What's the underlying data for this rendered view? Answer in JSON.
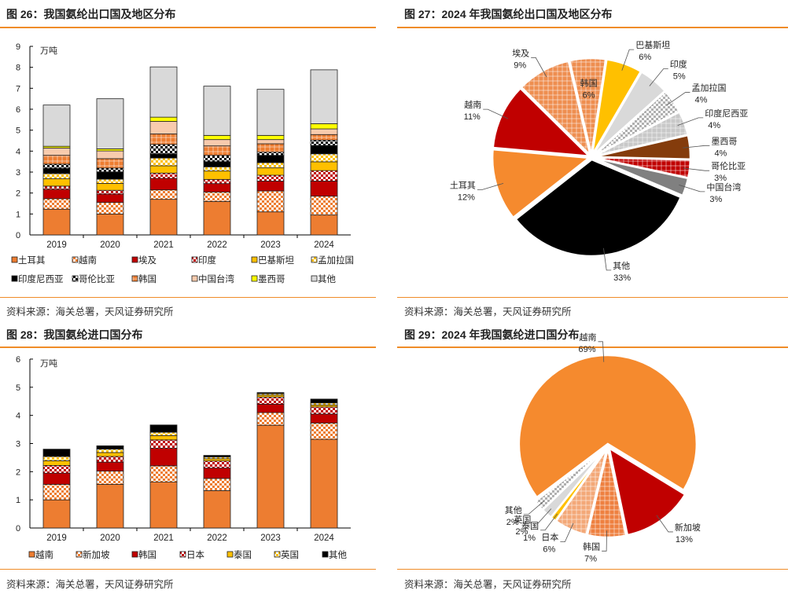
{
  "panels": {
    "p26": {
      "title": "图 26：我国氨纶出口国及地区分布",
      "source": "资料来源：海关总署，天风证券研究所"
    },
    "p27": {
      "title": "图 27：2024 年我国氨纶出口国及地区分布",
      "source": "资料来源：海关总署，天风证券研究所"
    },
    "p28": {
      "title": "图 28：我国氨纶进口国分布",
      "source": "资料来源：海关总署，天风证券研究所"
    },
    "p29": {
      "title": "图 29：2024 年我国氨纶进口国分布",
      "source": "资料来源：海关总署，天风证券研究所"
    }
  },
  "chart_data": [
    {
      "id": "c26",
      "type": "bar",
      "stacked": true,
      "title": "我国氨纶出口国及地区分布",
      "ylabel": "万吨",
      "ylim": [
        0,
        9
      ],
      "yticks": [
        0,
        1,
        2,
        3,
        4,
        5,
        6,
        7,
        8,
        9
      ],
      "categories": [
        "2019",
        "2020",
        "2021",
        "2022",
        "2023",
        "2024"
      ],
      "legend_position": "bottom",
      "series": [
        {
          "name": "土耳其",
          "fill": "#ED7D31",
          "pattern": "solid",
          "values": [
            1.23,
            1.0,
            1.7,
            1.6,
            1.1,
            0.95
          ]
        },
        {
          "name": "越南",
          "fill": "#ED7D31",
          "pattern": "checker",
          "values": [
            0.5,
            0.55,
            0.45,
            0.45,
            1.0,
            0.9
          ]
        },
        {
          "name": "埃及",
          "fill": "#C00000",
          "pattern": "solid",
          "values": [
            0.45,
            0.4,
            0.55,
            0.4,
            0.47,
            0.72
          ]
        },
        {
          "name": "印度",
          "fill": "#C00000",
          "pattern": "checker",
          "values": [
            0.15,
            0.18,
            0.25,
            0.2,
            0.28,
            0.5
          ]
        },
        {
          "name": "巴基斯坦",
          "fill": "#FFC000",
          "pattern": "solid",
          "values": [
            0.35,
            0.33,
            0.35,
            0.4,
            0.35,
            0.42
          ]
        },
        {
          "name": "孟加拉国",
          "fill": "#FFC000",
          "pattern": "checker",
          "values": [
            0.25,
            0.2,
            0.37,
            0.2,
            0.25,
            0.38
          ]
        },
        {
          "name": "印度尼西亚",
          "fill": "#000000",
          "pattern": "solid",
          "values": [
            0.25,
            0.35,
            0.2,
            0.25,
            0.35,
            0.4
          ]
        },
        {
          "name": "哥伦比亚",
          "fill": "#000000",
          "pattern": "checker",
          "values": [
            0.2,
            0.18,
            0.45,
            0.3,
            0.15,
            0.25
          ]
        },
        {
          "name": "韩国",
          "fill": "#ED7D31",
          "pattern": "plaid",
          "values": [
            0.42,
            0.45,
            0.5,
            0.45,
            0.4,
            0.27
          ]
        },
        {
          "name": "中国台湾",
          "fill": "#F8CBAD",
          "pattern": "solid",
          "values": [
            0.35,
            0.37,
            0.6,
            0.3,
            0.2,
            0.27
          ]
        },
        {
          "name": "墨西哥",
          "fill": "#FFFF00",
          "pattern": "solid",
          "values": [
            0.08,
            0.1,
            0.2,
            0.2,
            0.2,
            0.25
          ]
        },
        {
          "name": "其他",
          "fill": "#D9D9D9",
          "pattern": "solid",
          "values": [
            1.97,
            2.39,
            2.4,
            2.35,
            2.2,
            2.57
          ]
        }
      ]
    },
    {
      "id": "c27",
      "type": "pie",
      "title": "2024 年我国氨纶出口国及地区分布",
      "slices": [
        {
          "name": "韩国",
          "value": 6,
          "label": "6%",
          "fill": "#EE8E50",
          "pattern": "plaid",
          "label_position": "inside"
        },
        {
          "name": "巴基斯坦",
          "value": 6,
          "label": "6%",
          "fill": "#FFC000",
          "pattern": "solid"
        },
        {
          "name": "印度",
          "value": 5,
          "label": "5%",
          "fill": "#D9D9D9",
          "pattern": "solid"
        },
        {
          "name": "孟加拉国",
          "value": 4,
          "label": "4%",
          "fill": "#B0B0B0",
          "pattern": "checker"
        },
        {
          "name": "印度尼西亚",
          "value": 4,
          "label": "4%",
          "fill": "#C8C8C8",
          "pattern": "plaid"
        },
        {
          "name": "墨西哥",
          "value": 4,
          "label": "4%",
          "fill": "#843C0C",
          "pattern": "solid"
        },
        {
          "name": "哥伦比亚",
          "value": 3,
          "label": "3%",
          "fill": "#C00000",
          "pattern": "plaid"
        },
        {
          "name": "中国台湾",
          "value": 3,
          "label": "3%",
          "fill": "#808080",
          "pattern": "solid"
        },
        {
          "name": "其他",
          "value": 33,
          "label": "33%",
          "fill": "#000000",
          "pattern": "solid"
        },
        {
          "name": "土耳其",
          "value": 12,
          "label": "12%",
          "fill": "#F58A2E",
          "pattern": "solid"
        },
        {
          "name": "越南",
          "value": 11,
          "label": "11%",
          "fill": "#C00000",
          "pattern": "solid"
        },
        {
          "name": "埃及",
          "value": 9,
          "label": "9%",
          "fill": "#EE8E50",
          "pattern": "plaid"
        }
      ]
    },
    {
      "id": "c28",
      "type": "bar",
      "stacked": true,
      "title": "我国氨纶进口国分布",
      "ylabel": "万吨",
      "ylim": [
        0,
        6
      ],
      "yticks": [
        0,
        1,
        2,
        3,
        4,
        5,
        6
      ],
      "categories": [
        "2019",
        "2020",
        "2021",
        "2022",
        "2023",
        "2024"
      ],
      "legend_position": "bottom",
      "series": [
        {
          "name": "越南",
          "fill": "#ED7D31",
          "pattern": "solid",
          "values": [
            1.0,
            1.55,
            1.63,
            1.33,
            3.65,
            3.15
          ]
        },
        {
          "name": "新加坡",
          "fill": "#ED7D31",
          "pattern": "checker",
          "values": [
            0.55,
            0.47,
            0.58,
            0.43,
            0.45,
            0.58
          ]
        },
        {
          "name": "韩国",
          "fill": "#C00000",
          "pattern": "solid",
          "values": [
            0.4,
            0.32,
            0.62,
            0.37,
            0.3,
            0.32
          ]
        },
        {
          "name": "日本",
          "fill": "#C00000",
          "pattern": "checker",
          "values": [
            0.27,
            0.2,
            0.3,
            0.25,
            0.25,
            0.25
          ]
        },
        {
          "name": "泰国",
          "fill": "#FFC000",
          "pattern": "solid",
          "values": [
            0.17,
            0.14,
            0.15,
            0.08,
            0.07,
            0.07
          ]
        },
        {
          "name": "英国",
          "fill": "#FFC000",
          "pattern": "checker",
          "values": [
            0.15,
            0.12,
            0.12,
            0.06,
            0.05,
            0.07
          ]
        },
        {
          "name": "其他",
          "fill": "#000000",
          "pattern": "solid",
          "values": [
            0.26,
            0.12,
            0.26,
            0.06,
            0.04,
            0.14
          ]
        }
      ]
    },
    {
      "id": "c29",
      "type": "pie",
      "title": "2024 年我国氨纶进口国分布",
      "slices": [
        {
          "name": "越南",
          "value": 69,
          "label": "69%",
          "fill": "#F58A2E",
          "pattern": "solid"
        },
        {
          "name": "新加坡",
          "value": 13,
          "label": "13%",
          "fill": "#C00000",
          "pattern": "solid"
        },
        {
          "name": "韩国",
          "value": 7,
          "label": "7%",
          "fill": "#EE8040",
          "pattern": "plaid"
        },
        {
          "name": "日本",
          "value": 6,
          "label": "6%",
          "fill": "#F3A878",
          "pattern": "plaid"
        },
        {
          "name": "泰国",
          "value": 1,
          "label": "1%",
          "fill": "#FFC000",
          "pattern": "solid"
        },
        {
          "name": "英国",
          "value": 2,
          "label": "2%",
          "fill": "#D9D9D9",
          "pattern": "solid"
        },
        {
          "name": "其他",
          "value": 2,
          "label": "2%",
          "fill": "#B0B0B0",
          "pattern": "checker"
        }
      ]
    }
  ]
}
